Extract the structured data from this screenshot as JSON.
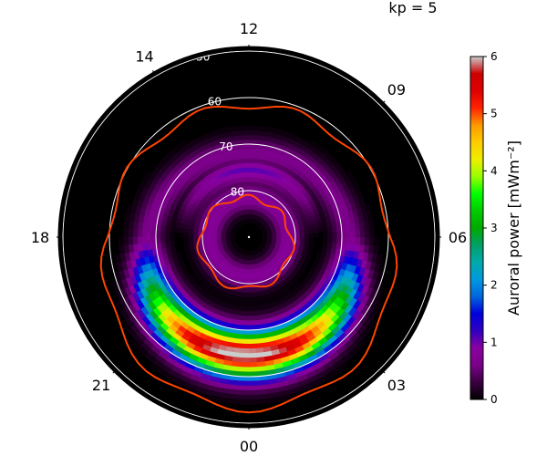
{
  "chart_data": {
    "type": "heatmap",
    "title": "kp = 5",
    "projection": "polar",
    "hour_labels": [
      {
        "text": "12",
        "mlt": 12
      },
      {
        "text": "09",
        "mlt": 9
      },
      {
        "text": "06",
        "mlt": 6
      },
      {
        "text": "03",
        "mlt": 3
      },
      {
        "text": "00",
        "mlt": 0
      },
      {
        "text": "21",
        "mlt": 21
      },
      {
        "text": "18",
        "mlt": 18
      },
      {
        "text": "14",
        "mlt": 14
      }
    ],
    "latitude_circles": [
      {
        "text": "50",
        "lat": 50
      },
      {
        "text": "60",
        "lat": 60
      },
      {
        "text": "70",
        "lat": 70
      },
      {
        "text": "80",
        "lat": 80
      }
    ],
    "colorbar": {
      "label": "Auroral power [mWm⁻²]",
      "ticks": [
        "0",
        "1",
        "2",
        "3",
        "4",
        "5",
        "6"
      ],
      "range": [
        0,
        6
      ],
      "colormap": "nipy_spectral"
    },
    "oval_contour_color": "#ff4400"
  }
}
